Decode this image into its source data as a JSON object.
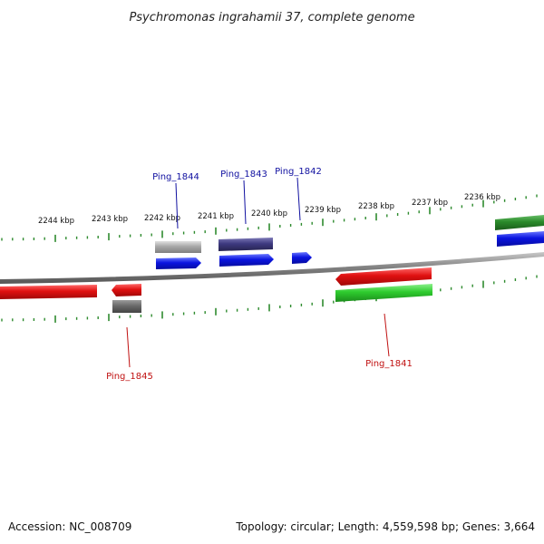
{
  "title": "Psychromonas ingrahamii 37, complete genome",
  "footer": {
    "accession": "Accession: NC_008709",
    "summary": "Topology: circular; Length: 4,559,598 bp; Genes: 3,664"
  },
  "ruler": {
    "labels": [
      "2244 kbp",
      "2243 kbp",
      "2242 kbp",
      "2241 kbp",
      "2240 kbp",
      "2239 kbp",
      "2238 kbp",
      "2237 kbp",
      "2236 kbp"
    ],
    "tick_color": "#2e8b2e"
  },
  "backbone_color": "#808080",
  "gene_labels": [
    {
      "id": "Ping_1844",
      "text": "Ping_1844",
      "color": "#1010a0"
    },
    {
      "id": "Ping_1843",
      "text": "Ping_1843",
      "color": "#1010a0"
    },
    {
      "id": "Ping_1842",
      "text": "Ping_1842",
      "color": "#1010a0"
    },
    {
      "id": "Ping_1845",
      "text": "Ping_1845",
      "color": "#c01010"
    },
    {
      "id": "Ping_1841",
      "text": "Ping_1841",
      "color": "#c01010"
    }
  ],
  "feature_colors": {
    "red": "#e01010",
    "blue": "#0a14e0",
    "green": "#2ecc2e",
    "dark_green": "#2a8a2a",
    "gray": "#a8a8a8",
    "dark_gray": "#6a6a6a",
    "purple": "#3e3a80"
  }
}
